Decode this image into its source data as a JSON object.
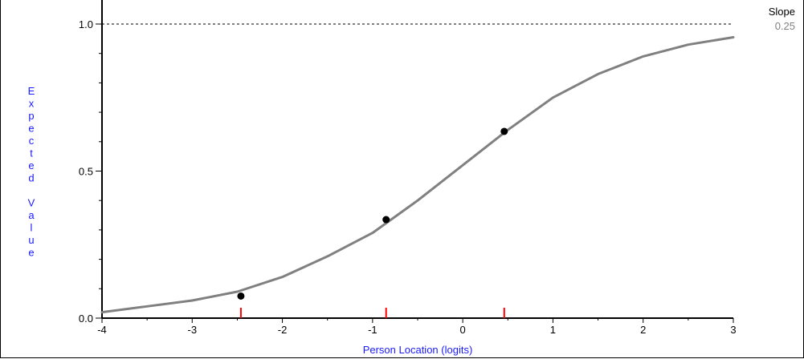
{
  "chart_data": {
    "type": "line",
    "xlabel": "Person Location (logits)",
    "ylabel": "Expected Value",
    "xlim": [
      -4,
      3
    ],
    "ylim": [
      0,
      1
    ],
    "x_ticks": [
      "-4",
      "-3",
      "-2",
      "-1",
      "0",
      "1",
      "2",
      "3"
    ],
    "y_ticks": [
      "0.0",
      "0.5",
      "1.0"
    ],
    "reference_line": {
      "y": 1.0,
      "style": "dashed"
    },
    "slope": {
      "label": "Slope",
      "value": "0.25"
    },
    "curve": {
      "x": [
        -4.0,
        -3.5,
        -3.0,
        -2.5,
        -2.0,
        -1.5,
        -1.0,
        -0.5,
        0.0,
        0.5,
        1.0,
        1.5,
        2.0,
        2.5,
        3.0
      ],
      "y": [
        0.02,
        0.04,
        0.06,
        0.09,
        0.14,
        0.21,
        0.29,
        0.4,
        0.52,
        0.64,
        0.75,
        0.83,
        0.89,
        0.93,
        0.955
      ]
    },
    "observed_points": {
      "x": [
        -2.46,
        -0.85,
        0.46
      ],
      "y": [
        0.075,
        0.335,
        0.635
      ]
    },
    "class_interval_marks": [
      -2.46,
      -0.85,
      0.46
    ],
    "colors": {
      "curve": "#808080",
      "points": "#000000",
      "class_marks": "#ff0000",
      "axis_title": "#1a1aff",
      "slope_value": "#808080"
    }
  }
}
